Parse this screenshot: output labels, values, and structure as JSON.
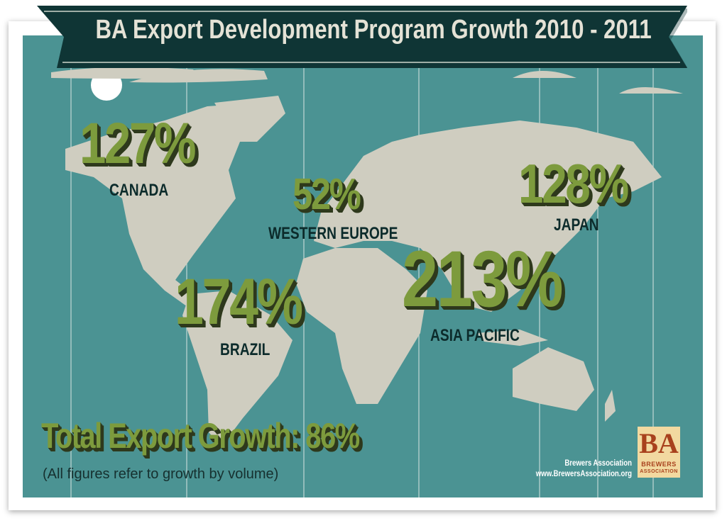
{
  "title": "BA Export Development Program Growth 2010 - 2011",
  "regions": [
    {
      "value": "127%",
      "label": "CANADA"
    },
    {
      "value": "52%",
      "label": "WESTERN EUROPE"
    },
    {
      "value": "128%",
      "label": "JAPAN"
    },
    {
      "value": "174%",
      "label": "BRAZIL"
    },
    {
      "value": "213%",
      "label": "ASIA PACIFIC"
    }
  ],
  "total": "Total Export Growth: 86%",
  "note": "(All figures refer to growth by volume)",
  "credit": {
    "name": "Brewers Association",
    "url": "www.BrewersAssociation.org"
  },
  "logo": {
    "mark": "BA",
    "line1": "BREWERS",
    "line2": "ASSOCIATION"
  },
  "colors": {
    "ocean": "#4b9393",
    "land": "#cfcdc0",
    "banner": "#0f3535",
    "number": "#7d9b3d",
    "label": "#0c2b2b"
  }
}
